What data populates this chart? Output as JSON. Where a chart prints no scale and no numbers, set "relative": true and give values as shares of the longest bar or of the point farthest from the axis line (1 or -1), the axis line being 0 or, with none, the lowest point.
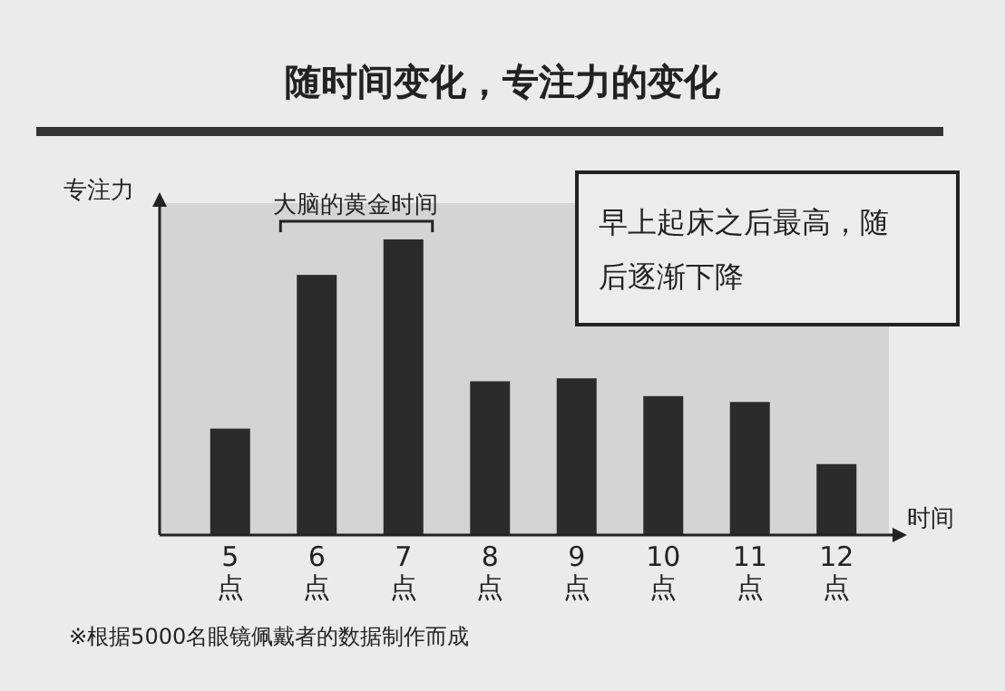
{
  "chart_data": {
    "type": "bar",
    "relative": true,
    "title": "随时间变化，专注力的变化",
    "ylabel": "专注力",
    "xlabel": "时间",
    "categories": [
      "5点",
      "6点",
      "7点",
      "8点",
      "9点",
      "10点",
      "11点",
      "12点"
    ],
    "values": [
      0.36,
      0.88,
      1,
      0.52,
      0.53,
      0.47,
      0.45,
      0.24
    ],
    "color": "#2b2b2b",
    "annotations": [
      "大脑的黄金时间",
      "早上起床之后最高，随后逐渐下降",
      "※根据5000名眼镜佩戴者的数据制作而成"
    ]
  }
}
